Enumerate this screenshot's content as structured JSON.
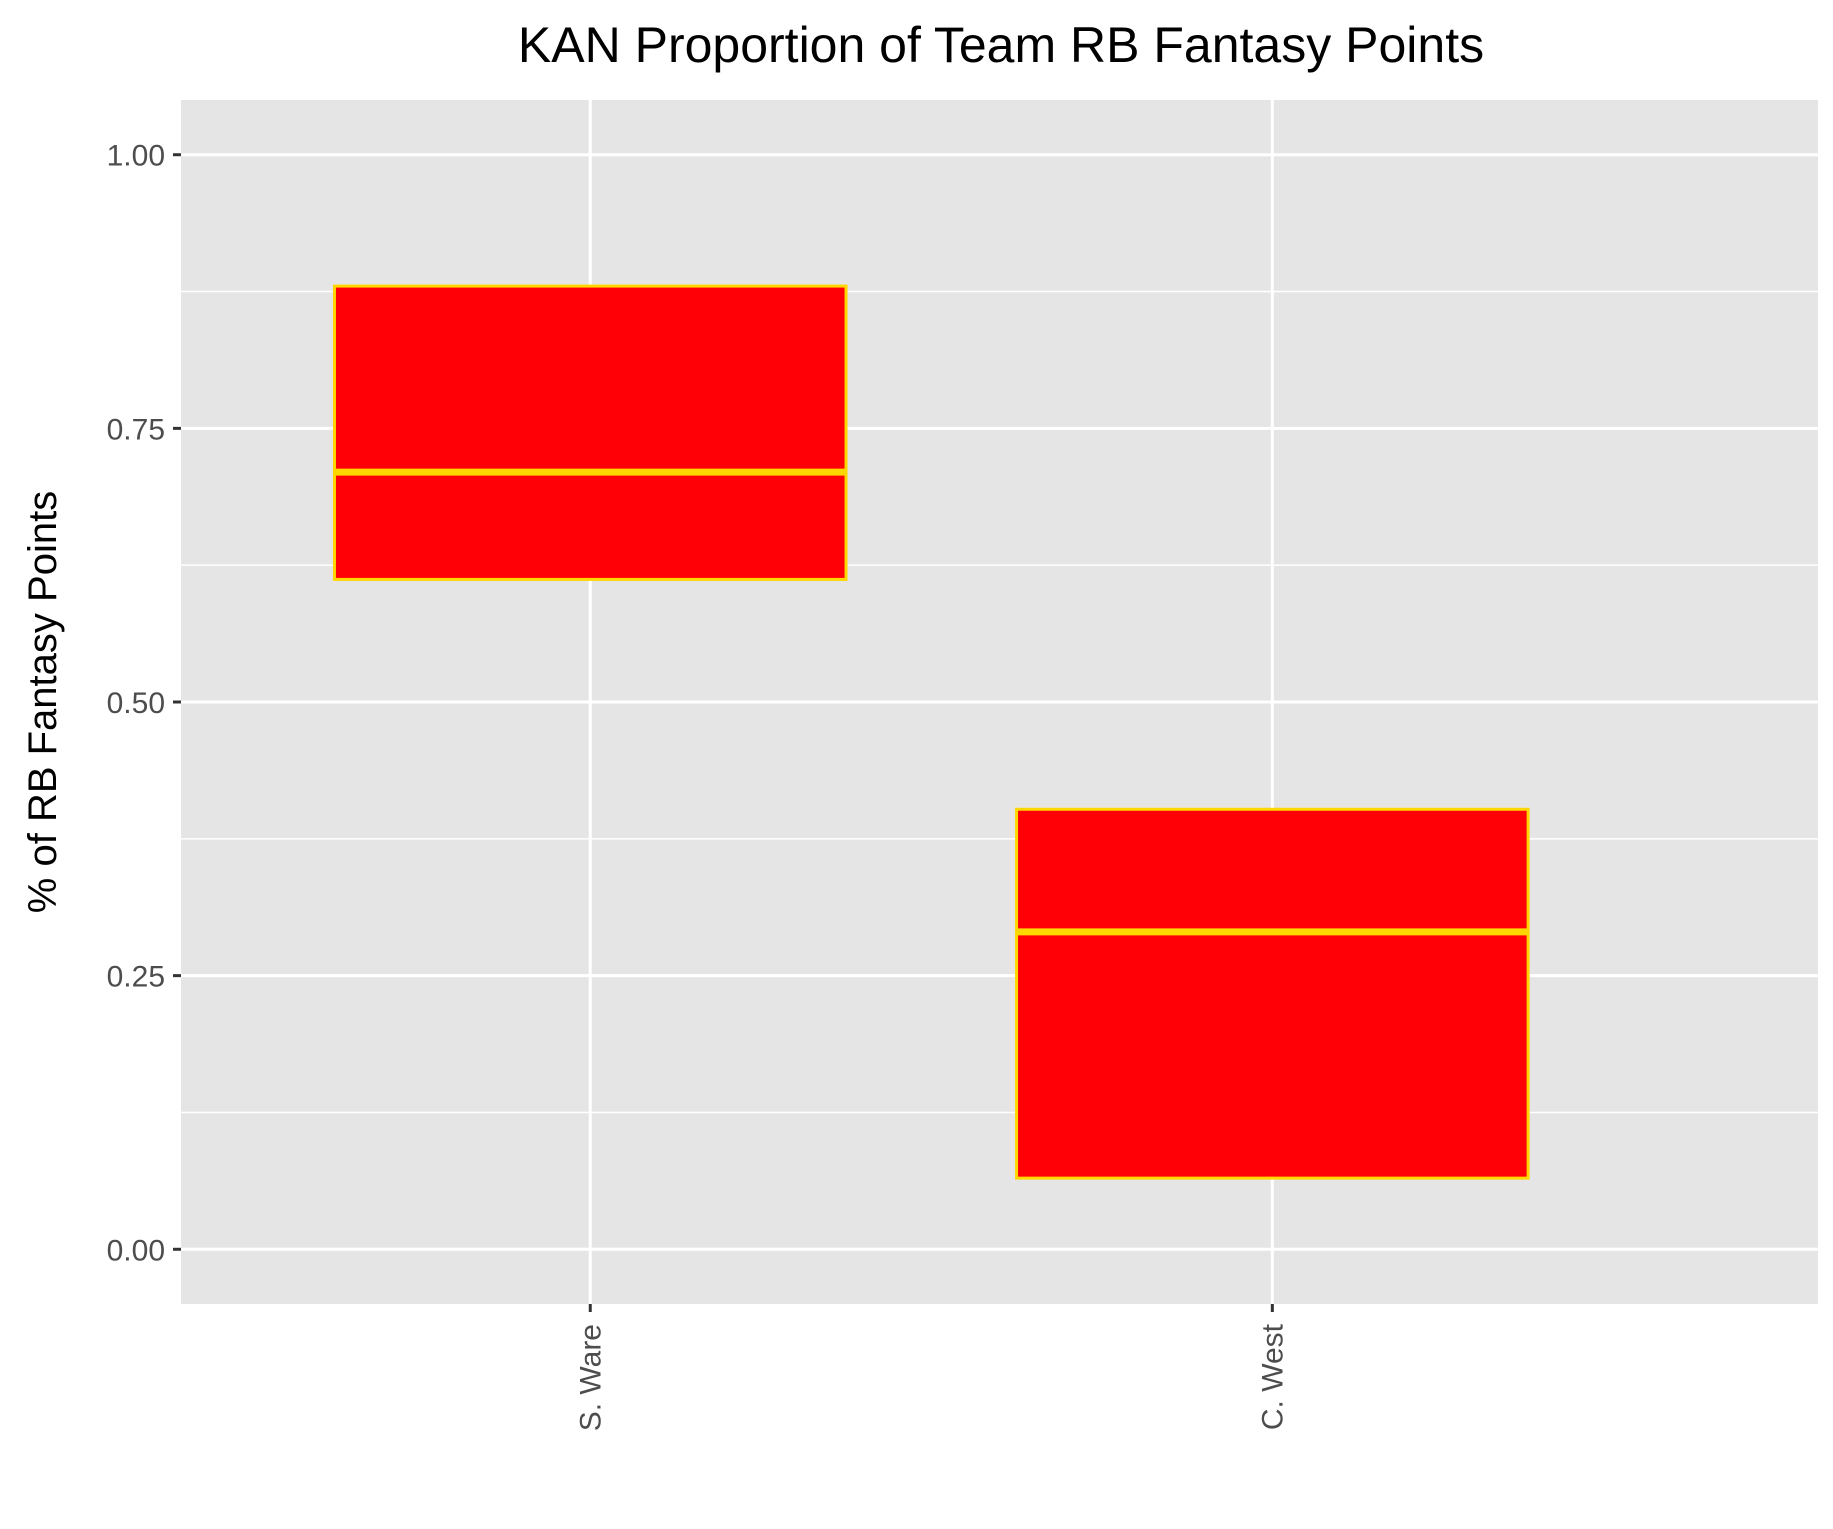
{
  "chart_data": {
    "type": "box",
    "title": "KAN Proportion of Team RB Fantasy Points",
    "xlabel": "",
    "ylabel": "% of RB Fantasy Points",
    "categories": [
      "S. Ware",
      "C. West"
    ],
    "boxes": [
      {
        "category": "S. Ware",
        "q1": 0.612,
        "median": 0.71,
        "q3": 0.88
      },
      {
        "category": "C. West",
        "q1": 0.065,
        "median": 0.29,
        "q3": 0.402
      }
    ],
    "ylim": [
      -0.05,
      1.05
    ],
    "yticks": [
      0,
      0.25,
      0.5,
      0.75,
      1.0
    ],
    "ytick_labels": [
      "0.00",
      "0.25",
      "0.50",
      "0.75",
      "1.00"
    ],
    "grid": true,
    "colors": {
      "box_fill": "#ff0007",
      "box_outline": "#ffd700",
      "panel_background": "#e5e5e5",
      "grid_line": "#ffffff"
    }
  }
}
